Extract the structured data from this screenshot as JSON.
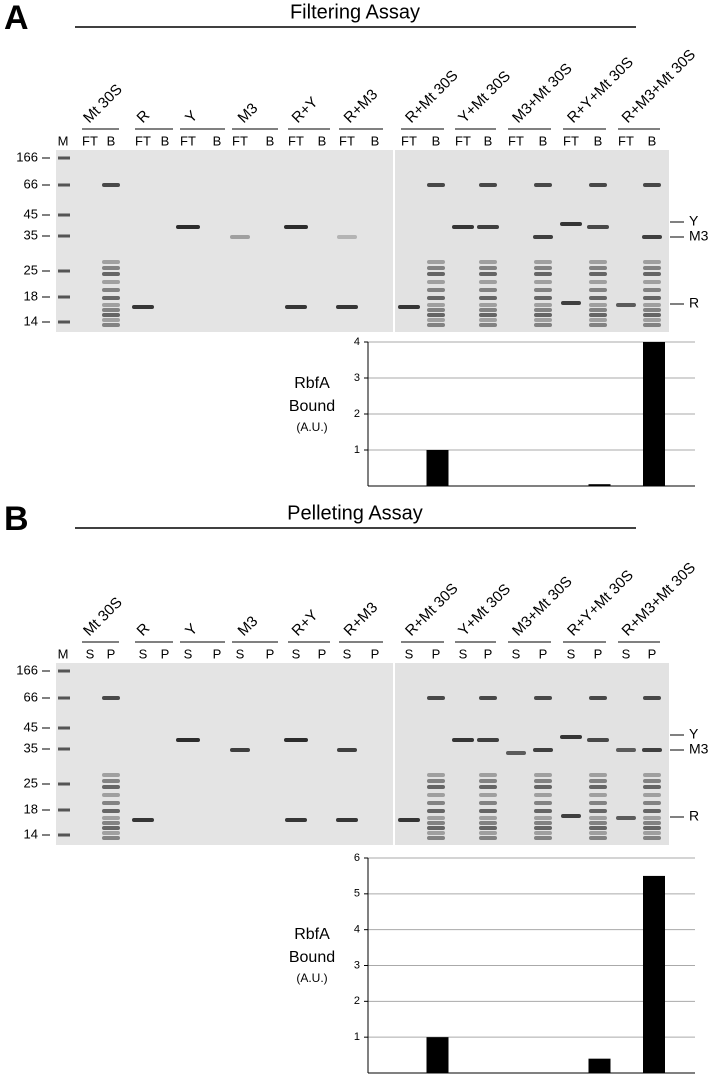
{
  "panels": [
    {
      "letter": "A",
      "title": "Filtering Assay",
      "marker_lane": "M",
      "lane_labels": [
        "FT",
        "B"
      ],
      "samples": [
        "Mt 30S",
        "R",
        "Y",
        "M3",
        "R+Y",
        "R+M3",
        "R+Mt 30S",
        "Y+Mt 30S",
        "M3+Mt 30S",
        "R+Y+Mt 30S",
        "R+M3+Mt 30S"
      ],
      "markers": [
        "166",
        "66",
        "45",
        "35",
        "25",
        "18",
        "14"
      ],
      "band_labels": [
        "Y",
        "M3",
        "R"
      ]
    },
    {
      "letter": "B",
      "title": "Pelleting Assay",
      "marker_lane": "M",
      "lane_labels": [
        "S",
        "P"
      ],
      "samples": [
        "Mt 30S",
        "R",
        "Y",
        "M3",
        "R+Y",
        "R+M3",
        "R+Mt 30S",
        "Y+Mt 30S",
        "M3+Mt 30S",
        "R+Y+Mt 30S",
        "R+M3+Mt 30S"
      ],
      "markers": [
        "166",
        "66",
        "45",
        "35",
        "25",
        "18",
        "14"
      ],
      "band_labels": [
        "Y",
        "M3",
        "R"
      ]
    }
  ],
  "chart_data": [
    {
      "type": "bar",
      "y_label": [
        "RbfA",
        "Bound",
        "(A.U.)"
      ],
      "categories": [
        null,
        null,
        null,
        null,
        null
      ],
      "values": [
        1,
        0,
        0,
        0.05,
        4
      ],
      "color": "#000000",
      "ylim": [
        0,
        4
      ],
      "yticks": [
        1,
        2,
        3,
        4
      ],
      "grid": true
    },
    {
      "type": "bar",
      "y_label": [
        "RbfA",
        "Bound",
        "(A.U.)"
      ],
      "categories": [
        null,
        null,
        null,
        null,
        null
      ],
      "values": [
        1,
        0,
        0,
        0.4,
        5.5
      ],
      "color": "#000000",
      "ylim": [
        0,
        6
      ],
      "yticks": [
        1,
        2,
        3,
        4,
        5,
        6
      ],
      "grid": true
    }
  ]
}
